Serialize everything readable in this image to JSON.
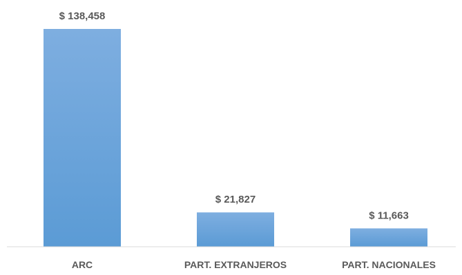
{
  "chart_data": {
    "type": "bar",
    "categories": [
      "ARC",
      "PART. EXTRANJEROS",
      "PART. NACIONALES"
    ],
    "values": [
      138458,
      21827,
      11663
    ],
    "data_labels": [
      "$ 138,458",
      "$ 21,827",
      "$ 11,663"
    ],
    "title": "",
    "xlabel": "",
    "ylabel": "",
    "ylim": [
      0,
      138458
    ],
    "grid": false,
    "bar_color": "#5b9bd5"
  }
}
